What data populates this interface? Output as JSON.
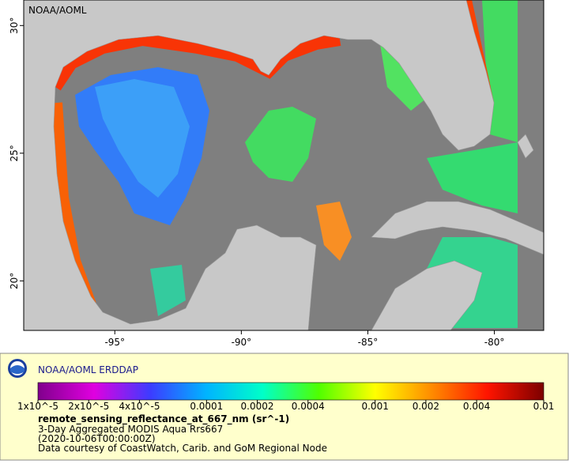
{
  "header": {
    "watermark": "NOAA/AOML"
  },
  "map": {
    "xlim": [
      -98.6,
      -78.05
    ],
    "ylim": [
      18.06,
      31
    ],
    "xticks": [
      {
        "value": -95,
        "label": "-95°"
      },
      {
        "value": -90,
        "label": "-90°"
      },
      {
        "value": -85,
        "label": "-85°"
      },
      {
        "value": -80,
        "label": "-80°"
      }
    ],
    "yticks": [
      {
        "value": 20,
        "label": "20°"
      },
      {
        "value": 25,
        "label": "25°"
      },
      {
        "value": 30,
        "label": "30°"
      }
    ]
  },
  "legend": {
    "title": "NOAA/AOML ERDDAP",
    "colorbar": {
      "scale": "log",
      "lim": [
        1e-05,
        0.01
      ],
      "ticks": [
        {
          "value": 1e-05,
          "label": "1x10^-5"
        },
        {
          "value": 2e-05,
          "label": "2x10^-5"
        },
        {
          "value": 4e-05,
          "label": "4x10^-5"
        },
        0.0001,
        0.0002,
        0.0004,
        0.001,
        0.002,
        0.004,
        0.01
      ],
      "colors": [
        "#80008c",
        "#e000e0",
        "#3c3cff",
        "#00b4ff",
        "#00ffc8",
        "#50ff00",
        "#ffff00",
        "#ff8c00",
        "#ff1400",
        "#7c0000"
      ]
    },
    "variable": "remote_sensing_reflectance_at_667_nm (sr^-1)",
    "lines": [
      "3-Day Aggregated MODIS Aqua Rrs667",
      "(2020-10-06T00:00:00Z)",
      "Data courtesy of CoastWatch, Carib. and GoM Regional Node"
    ]
  }
}
